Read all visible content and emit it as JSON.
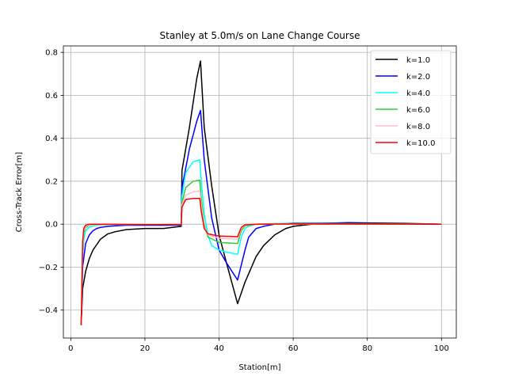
{
  "chart_data": {
    "type": "line",
    "title": "Stanley at 5.0m/s on Lane Change Course",
    "xlabel": "Station[m]",
    "ylabel": "Cross-Track Error[m]",
    "xlim": [
      -2,
      104
    ],
    "ylim": [
      -0.53,
      0.83
    ],
    "xticks": [
      0,
      20,
      40,
      60,
      80,
      100
    ],
    "yticks": [
      -0.4,
      -0.2,
      0.0,
      0.2,
      0.4,
      0.6,
      0.8
    ],
    "xtick_labels": [
      "0",
      "20",
      "40",
      "60",
      "80",
      "100"
    ],
    "ytick_labels": [
      "−0.4",
      "−0.2",
      "0.0",
      "0.2",
      "0.4",
      "0.6",
      "0.8"
    ],
    "grid": true,
    "legend_position": "upper right",
    "series": [
      {
        "name": "k=1.0",
        "color": "#000000",
        "x": [
          2.8,
          3.2,
          4,
          5,
          6,
          8,
          10,
          12,
          15,
          20,
          25,
          29.8,
          30,
          32,
          34,
          35,
          36,
          38,
          40,
          42,
          45,
          47,
          50,
          52,
          55,
          58,
          60,
          65,
          70,
          75,
          80,
          90,
          100
        ],
        "y": [
          -0.47,
          -0.3,
          -0.22,
          -0.16,
          -0.12,
          -0.07,
          -0.045,
          -0.035,
          -0.025,
          -0.02,
          -0.02,
          -0.01,
          0.25,
          0.45,
          0.68,
          0.76,
          0.45,
          0.18,
          -0.05,
          -0.18,
          -0.37,
          -0.27,
          -0.15,
          -0.1,
          -0.05,
          -0.02,
          -0.01,
          0.0,
          0.005,
          0.007,
          0.006,
          0.004,
          0.0
        ]
      },
      {
        "name": "k=2.0",
        "color": "#0000ff",
        "x": [
          2.8,
          3.2,
          4,
          5,
          6,
          7,
          8,
          10,
          15,
          20,
          25,
          29.8,
          30,
          32,
          34,
          35,
          36,
          38,
          40,
          42,
          45,
          47,
          48,
          50,
          52,
          55,
          60,
          70,
          80,
          90,
          100
        ],
        "y": [
          -0.47,
          -0.2,
          -0.09,
          -0.05,
          -0.03,
          -0.02,
          -0.015,
          -0.01,
          -0.005,
          -0.005,
          -0.005,
          -0.005,
          0.17,
          0.35,
          0.48,
          0.53,
          0.3,
          0.03,
          -0.12,
          -0.18,
          -0.26,
          -0.12,
          -0.06,
          -0.02,
          -0.01,
          0.0,
          0.005,
          0.005,
          0.004,
          0.002,
          0.0
        ]
      },
      {
        "name": "k=4.0",
        "color": "#00ffff",
        "x": [
          2.8,
          3.2,
          3.6,
          4,
          5,
          6,
          8,
          10,
          20,
          29.8,
          30,
          31,
          33,
          34.8,
          35.2,
          36,
          37,
          38,
          40,
          42,
          45,
          46,
          47,
          48,
          50,
          55,
          60,
          100
        ],
        "y": [
          -0.47,
          -0.15,
          -0.06,
          -0.03,
          -0.015,
          -0.008,
          -0.004,
          -0.002,
          -0.002,
          -0.002,
          0.13,
          0.24,
          0.29,
          0.3,
          0.2,
          0.05,
          -0.05,
          -0.1,
          -0.12,
          -0.13,
          -0.14,
          -0.06,
          -0.02,
          -0.01,
          0.0,
          0.003,
          0.003,
          0.0
        ]
      },
      {
        "name": "k=6.0",
        "color": "#32cd32",
        "x": [
          2.8,
          3.2,
          3.5,
          4,
          5,
          6,
          10,
          20,
          29.8,
          30,
          31,
          33,
          34.8,
          35.2,
          36,
          37,
          40,
          45,
          46,
          47,
          50,
          60,
          100
        ],
        "y": [
          -0.47,
          -0.12,
          -0.04,
          -0.015,
          -0.006,
          -0.003,
          -0.001,
          -0.001,
          -0.001,
          0.1,
          0.17,
          0.2,
          0.205,
          0.12,
          0.0,
          -0.06,
          -0.085,
          -0.09,
          -0.03,
          -0.008,
          0.0,
          0.002,
          0.0
        ]
      },
      {
        "name": "k=8.0",
        "color": "#ffc0cb",
        "x": [
          2.8,
          3.2,
          3.5,
          4,
          5,
          10,
          20,
          29.8,
          30,
          31,
          33,
          34.8,
          35.2,
          36,
          37,
          40,
          45,
          46,
          47,
          50,
          60,
          100
        ],
        "y": [
          -0.47,
          -0.1,
          -0.03,
          -0.01,
          -0.004,
          -0.001,
          -0.001,
          -0.001,
          0.09,
          0.135,
          0.15,
          0.155,
          0.09,
          -0.01,
          -0.05,
          -0.065,
          -0.07,
          -0.02,
          -0.005,
          0.0,
          0.0,
          0.0
        ]
      },
      {
        "name": "k=10.0",
        "color": "#ff0000",
        "x": [
          2.8,
          3.2,
          3.5,
          4,
          5,
          10,
          20,
          25,
          29.8,
          30,
          31,
          33,
          34.8,
          35.2,
          36,
          37,
          40,
          45,
          46,
          47,
          50,
          60,
          100
        ],
        "y": [
          -0.47,
          -0.08,
          -0.02,
          -0.005,
          0.0,
          0.0,
          -0.002,
          -0.002,
          -0.001,
          0.08,
          0.115,
          0.12,
          0.12,
          0.06,
          -0.02,
          -0.045,
          -0.055,
          -0.058,
          -0.015,
          -0.003,
          0.0,
          0.001,
          0.0
        ]
      }
    ]
  }
}
